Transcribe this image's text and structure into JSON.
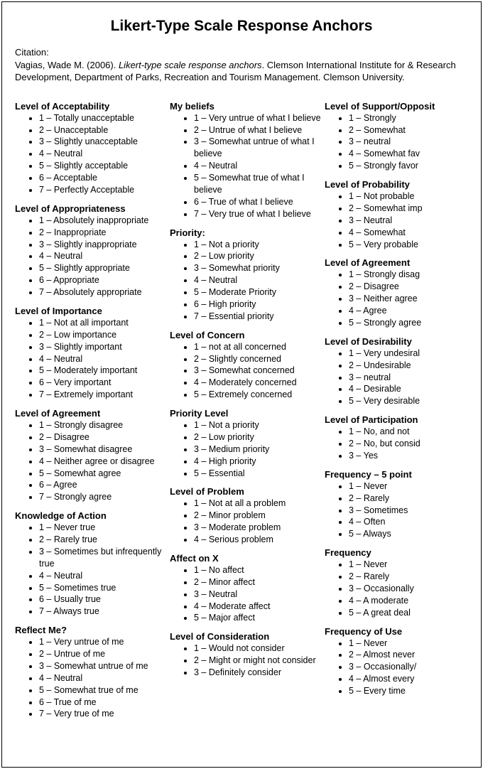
{
  "title": "Likert-Type Scale Response Anchors",
  "citation": {
    "label": "Citation:",
    "line1_a": "Vagias, Wade M. (2006). ",
    "line1_ital": "Likert-type scale response anchors",
    "line1_b": ".  Clemson International Institute for & Research Development, Department of Parks, Recreation and Tourism Management.  Clemson University."
  },
  "columns": [
    [
      {
        "title": "Level of Acceptability",
        "items": [
          "1 – Totally unacceptable",
          "2 – Unacceptable",
          "3 – Slightly unacceptable",
          "4 – Neutral",
          "5 – Slightly acceptable",
          "6 – Acceptable",
          "7 – Perfectly Acceptable"
        ]
      },
      {
        "title": "Level of Appropriateness",
        "items": [
          "1 – Absolutely inappropriate",
          "2 – Inappropriate",
          "3 – Slightly inappropriate",
          "4 – Neutral",
          "5 – Slightly appropriate",
          "6 – Appropriate",
          "7 – Absolutely appropriate"
        ]
      },
      {
        "title": "Level of Importance",
        "items": [
          "1 – Not at all important",
          "2 – Low importance",
          "3 – Slightly important",
          "4 – Neutral",
          "5 – Moderately important",
          "6 – Very important",
          "7 – Extremely important"
        ]
      },
      {
        "title": "Level of Agreement",
        "items": [
          "1 – Strongly disagree",
          "2 – Disagree",
          "3 – Somewhat disagree",
          "4 – Neither agree or disagree",
          "5 – Somewhat agree",
          "6 – Agree",
          "7 – Strongly agree"
        ]
      },
      {
        "title": "Knowledge of Action",
        "items": [
          "1 – Never true",
          "2 – Rarely true",
          "3 – Sometimes but infrequently true",
          "4 – Neutral",
          "5 – Sometimes true",
          "6 – Usually true",
          "7 – Always true"
        ]
      },
      {
        "title": "Reflect Me?",
        "items": [
          "1 – Very untrue of me",
          "2 – Untrue of me",
          "3 – Somewhat untrue of me",
          "4 – Neutral",
          "5 – Somewhat true of me",
          "6 – True of me",
          "7 – Very true of me"
        ]
      }
    ],
    [
      {
        "title": "My beliefs",
        "items": [
          "1 – Very untrue of what I believe",
          "2 – Untrue of what I believe",
          "3 – Somewhat untrue of what I believe",
          "4 – Neutral",
          "5 – Somewhat true of what I believe",
          "6 – True of what I believe",
          "7 – Very true of what I believe"
        ]
      },
      {
        "title": "Priority:",
        "items": [
          "1 – Not a priority",
          "2 – Low priority",
          "3 – Somewhat priority",
          "4 – Neutral",
          "5 – Moderate Priority",
          "6 – High priority",
          "7 – Essential priority"
        ]
      },
      {
        "title": "Level of Concern",
        "items": [
          "1 – not at all concerned",
          "2 – Slightly concerned",
          "3 – Somewhat concerned",
          "4 – Moderately concerned",
          "5 – Extremely concerned"
        ]
      },
      {
        "title": "Priority Level",
        "items": [
          "1 – Not a priority",
          "2 – Low priority",
          "3 – Medium priority",
          "4 – High priority",
          "5 – Essential"
        ]
      },
      {
        "title": "Level of Problem",
        "items": [
          "1 – Not at all a problem",
          "2 – Minor problem",
          "3 – Moderate problem",
          "4 – Serious problem"
        ]
      },
      {
        "title": "Affect on X",
        "items": [
          "1 – No affect",
          "2 – Minor affect",
          "3 – Neutral",
          "4 – Moderate affect",
          "5 – Major affect"
        ]
      },
      {
        "title": "Level of Consideration",
        "items": [
          "1 – Would not consider",
          "2 – Might or might not consider",
          "3 – Definitely consider"
        ]
      }
    ],
    [
      {
        "title": "Level of Support/Opposit",
        "items": [
          "1 – Strongly",
          "2 – Somewhat",
          "3 – neutral",
          "4 – Somewhat fav",
          "5 – Strongly favor"
        ]
      },
      {
        "title": "Level of Probability",
        "items": [
          "1 – Not probable",
          "2 – Somewhat imp",
          "3 – Neutral",
          "4 – Somewhat",
          "5 – Very probable"
        ]
      },
      {
        "title": "Level of Agreement",
        "items": [
          "1 – Strongly disag",
          "2 – Disagree",
          "3 – Neither agree",
          "4 – Agree",
          "5 – Strongly agree"
        ]
      },
      {
        "title": "Level of Desirability",
        "items": [
          "1 – Very undesiral",
          "2 – Undesirable",
          "3 – neutral",
          "4 – Desirable",
          "5 – Very desirable"
        ]
      },
      {
        "title": "Level of Participation",
        "items": [
          "1 – No, and not",
          "2 – No, but consid",
          "3 – Yes"
        ]
      },
      {
        "title": "Frequency – 5 point",
        "items": [
          "1 – Never",
          "2 – Rarely",
          "3 – Sometimes",
          "4 – Often",
          "5 – Always"
        ]
      },
      {
        "title": "Frequency",
        "items": [
          "1 – Never",
          "2 – Rarely",
          "3 – Occasionally",
          "4 – A moderate",
          "5 – A great deal"
        ]
      },
      {
        "title": "Frequency of Use",
        "items": [
          "1 – Never",
          "2 – Almost never",
          "3 – Occasionally/",
          "4 – Almost every",
          "5 – Every time"
        ]
      }
    ]
  ]
}
